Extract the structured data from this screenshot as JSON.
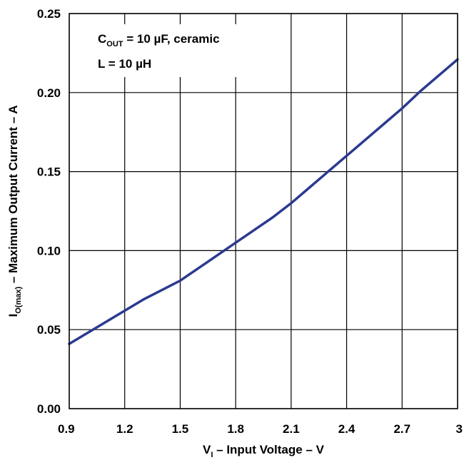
{
  "chart_data": {
    "type": "line",
    "title": "",
    "xlabel": {
      "main": "V",
      "sub": "I",
      "rest": " – Input Voltage – V"
    },
    "ylabel": {
      "main": "I",
      "sub": "O(max)",
      "rest": " – Maximum Output Current – A"
    },
    "xlim": [
      0.9,
      3.0
    ],
    "ylim": [
      0.0,
      0.25
    ],
    "xticks": [
      0.9,
      1.2,
      1.5,
      1.8,
      2.1,
      2.4,
      2.7,
      3.0
    ],
    "xtick_labels": [
      "0.9",
      "1.2",
      "1.5",
      "1.8",
      "2.1",
      "2.4",
      "2.7",
      "3"
    ],
    "yticks": [
      0.0,
      0.05,
      0.1,
      0.15,
      0.2,
      0.25
    ],
    "ytick_labels": [
      "0.00",
      "0.05",
      "0.10",
      "0.15",
      "0.20",
      "0.25"
    ],
    "grid": true,
    "line_color": "#2b3a8f",
    "annotations": [
      {
        "main": "C",
        "sub": "OUT",
        "rest": " = 10 µF, ceramic"
      },
      {
        "main": "L = 10 µH",
        "sub": "",
        "rest": ""
      }
    ],
    "series": [
      {
        "x": [
          0.9,
          1.0,
          1.1,
          1.2,
          1.3,
          1.4,
          1.5,
          1.6,
          1.7,
          1.8,
          1.9,
          2.0,
          2.1,
          2.2,
          2.3,
          2.4,
          2.5,
          2.6,
          2.7,
          2.8,
          2.9,
          3.0
        ],
        "y": [
          0.041,
          0.048,
          0.055,
          0.062,
          0.069,
          0.075,
          0.081,
          0.089,
          0.097,
          0.105,
          0.113,
          0.121,
          0.13,
          0.14,
          0.15,
          0.16,
          0.17,
          0.18,
          0.19,
          0.201,
          0.211,
          0.221
        ]
      }
    ]
  }
}
